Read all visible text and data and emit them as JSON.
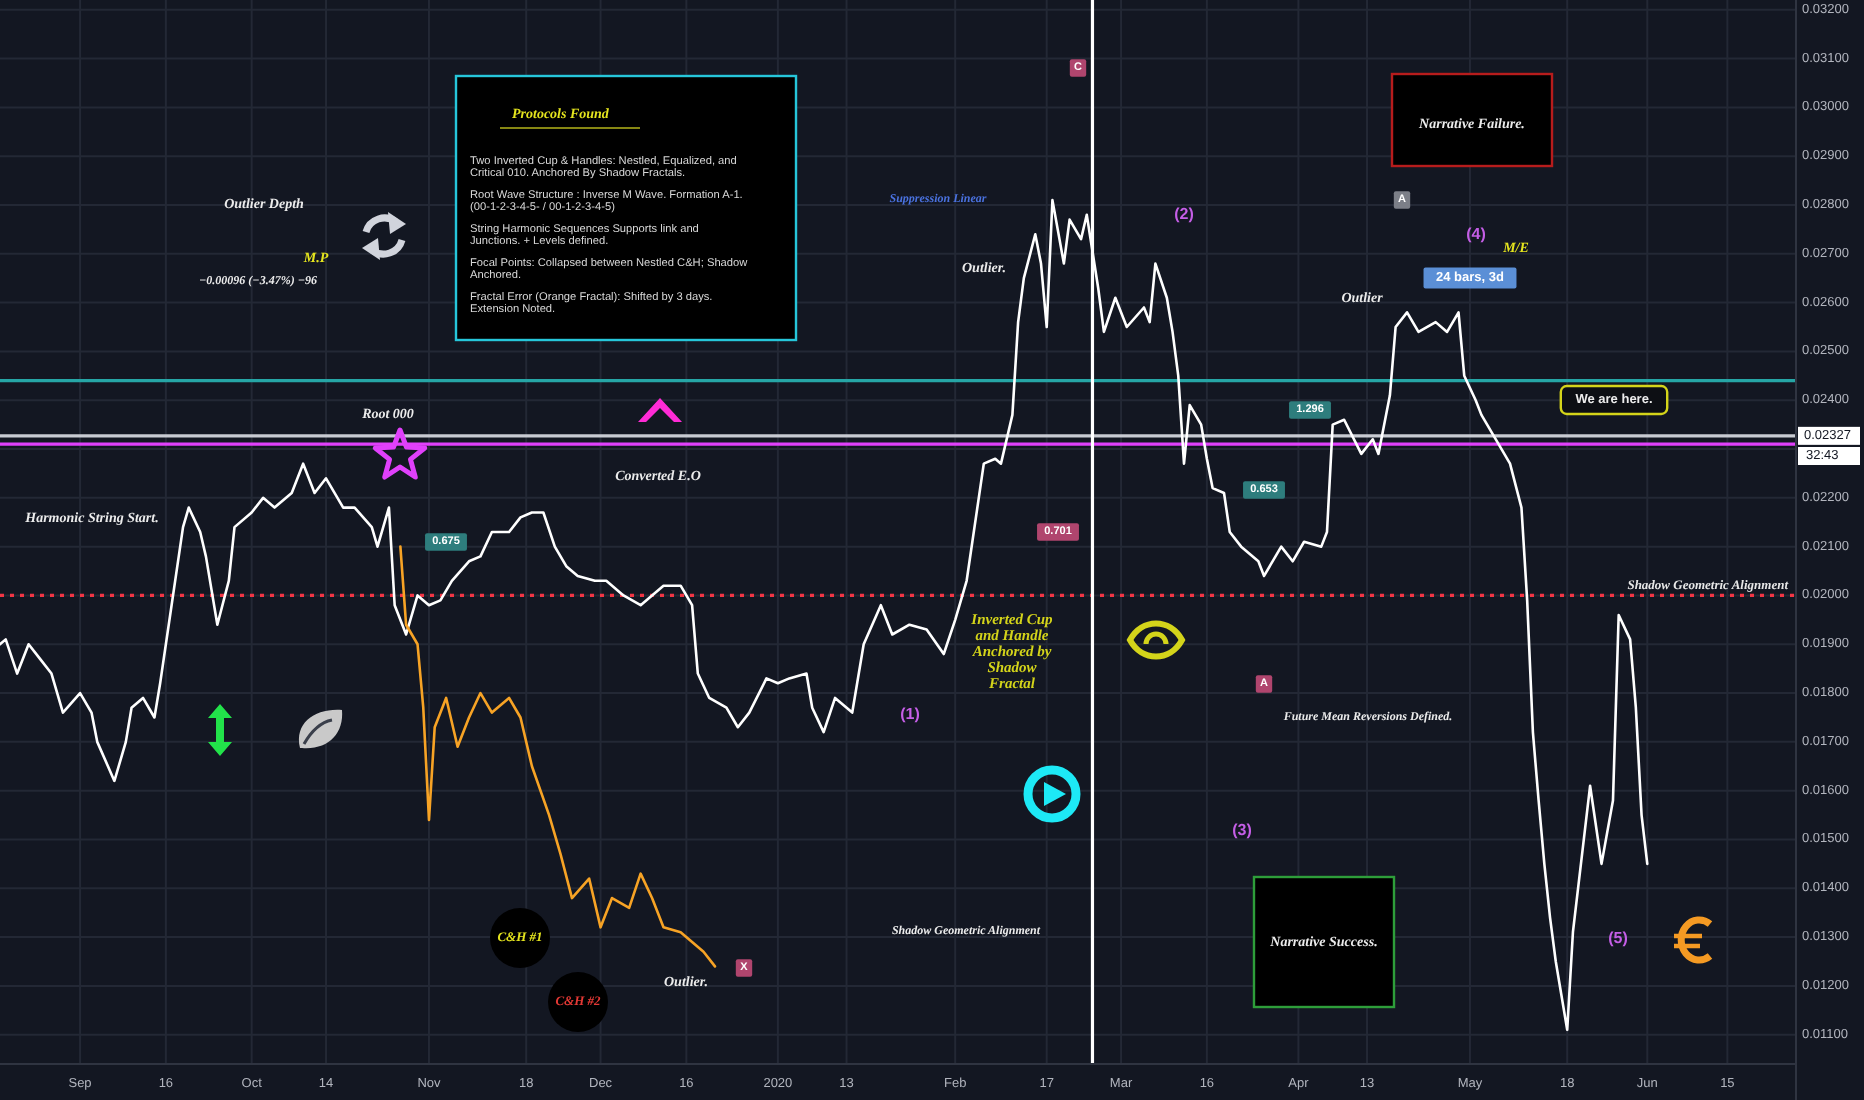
{
  "chart_data": {
    "type": "line",
    "xlim": [
      "2019-08-18",
      "2020-06-27"
    ],
    "xticks": [
      {
        "value": "2019-09-01",
        "label": "Sep"
      },
      {
        "value": "2019-09-16",
        "label": "16"
      },
      {
        "value": "2019-10-01",
        "label": "Oct"
      },
      {
        "value": "2019-10-14",
        "label": "14"
      },
      {
        "value": "2019-11-01",
        "label": "Nov"
      },
      {
        "value": "2019-11-18",
        "label": "18"
      },
      {
        "value": "2019-12-01",
        "label": "Dec"
      },
      {
        "value": "2019-12-16",
        "label": "16"
      },
      {
        "value": "2020-01-01",
        "label": "2020"
      },
      {
        "value": "2020-01-13",
        "label": "13"
      },
      {
        "value": "2020-02-01",
        "label": "Feb"
      },
      {
        "value": "2020-02-17",
        "label": "17"
      },
      {
        "value": "2020-03-01",
        "label": "Mar"
      },
      {
        "value": "2020-03-16",
        "label": "16"
      },
      {
        "value": "2020-04-01",
        "label": "Apr"
      },
      {
        "value": "2020-04-13",
        "label": "13"
      },
      {
        "value": "2020-05-01",
        "label": "May"
      },
      {
        "value": "2020-05-18",
        "label": "18"
      },
      {
        "value": "2020-06-01",
        "label": "Jun"
      },
      {
        "value": "2020-06-15",
        "label": "15"
      }
    ],
    "ylim": [
      0.0104,
      0.0322
    ],
    "yticks": [
      {
        "value": 0.011,
        "label": "0.01100"
      },
      {
        "value": 0.012,
        "label": "0.01200"
      },
      {
        "value": 0.013,
        "label": "0.01300"
      },
      {
        "value": 0.014,
        "label": "0.01400"
      },
      {
        "value": 0.015,
        "label": "0.01500"
      },
      {
        "value": 0.016,
        "label": "0.01600"
      },
      {
        "value": 0.017,
        "label": "0.01700"
      },
      {
        "value": 0.018,
        "label": "0.01800"
      },
      {
        "value": 0.019,
        "label": "0.01900"
      },
      {
        "value": 0.02,
        "label": "0.02000"
      },
      {
        "value": 0.021,
        "label": "0.02100"
      },
      {
        "value": 0.022,
        "label": "0.02200"
      },
      {
        "value": 0.023,
        "label": null
      },
      {
        "value": 0.024,
        "label": "0.02400"
      },
      {
        "value": 0.025,
        "label": "0.02500"
      },
      {
        "value": 0.026,
        "label": "0.02600"
      },
      {
        "value": 0.027,
        "label": "0.02700"
      },
      {
        "value": 0.028,
        "label": "0.02800"
      },
      {
        "value": 0.029,
        "label": "0.02900"
      },
      {
        "value": 0.03,
        "label": "0.03000"
      },
      {
        "value": 0.031,
        "label": "0.03100"
      },
      {
        "value": 0.032,
        "label": "0.03200"
      }
    ],
    "grid": true,
    "series": [
      {
        "color": "#ffffff",
        "x": [
          "2019-08-18",
          "2019-08-19",
          "2019-08-21",
          "2019-08-23",
          "2019-08-25",
          "2019-08-27",
          "2019-08-29",
          "2019-09-01",
          "2019-09-03",
          "2019-09-04",
          "2019-09-07",
          "2019-09-09",
          "2019-09-10",
          "2019-09-12",
          "2019-09-14",
          "2019-09-15",
          "2019-09-17",
          "2019-09-19",
          "2019-09-20",
          "2019-09-22",
          "2019-09-23",
          "2019-09-25",
          "2019-09-27",
          "2019-09-28",
          "2019-10-01",
          "2019-10-03",
          "2019-10-05",
          "2019-10-08",
          "2019-10-10",
          "2019-10-12",
          "2019-10-14",
          "2019-10-17",
          "2019-10-19",
          "2019-10-22",
          "2019-10-23",
          "2019-10-25",
          "2019-10-26",
          "2019-10-28",
          "2019-10-30",
          "2019-11-01",
          "2019-11-03",
          "2019-11-05",
          "2019-11-08",
          "2019-11-10",
          "2019-11-12",
          "2019-11-15",
          "2019-11-17",
          "2019-11-19",
          "2019-11-21",
          "2019-11-23",
          "2019-11-25",
          "2019-11-27",
          "2019-11-30",
          "2019-12-02",
          "2019-12-05",
          "2019-12-08",
          "2019-12-10",
          "2019-12-12",
          "2019-12-15",
          "2019-12-17",
          "2019-12-18",
          "2019-12-20",
          "2019-12-23",
          "2019-12-25",
          "2019-12-27",
          "2019-12-30",
          "2020-01-01",
          "2020-01-03",
          "2020-01-06",
          "2020-01-07",
          "2020-01-09",
          "2020-01-11",
          "2020-01-14",
          "2020-01-16",
          "2020-01-19",
          "2020-01-21",
          "2020-01-24",
          "2020-01-27",
          "2020-01-30",
          "2020-02-01",
          "2020-02-03",
          "2020-02-04",
          "2020-02-06",
          "2020-02-08",
          "2020-02-09",
          "2020-02-11",
          "2020-02-12",
          "2020-02-13",
          "2020-02-15",
          "2020-02-16",
          "2020-02-17",
          "2020-02-18",
          "2020-02-20",
          "2020-02-21",
          "2020-02-23",
          "2020-02-24",
          "2020-02-26",
          "2020-02-27",
          "2020-02-29",
          "2020-03-02",
          "2020-03-05",
          "2020-03-06",
          "2020-03-07",
          "2020-03-09",
          "2020-03-10",
          "2020-03-11",
          "2020-03-12",
          "2020-03-13",
          "2020-03-15",
          "2020-03-16",
          "2020-03-17",
          "2020-03-19",
          "2020-03-20",
          "2020-03-22",
          "2020-03-25",
          "2020-03-26",
          "2020-03-29",
          "2020-03-31",
          "2020-04-02",
          "2020-04-05",
          "2020-04-06",
          "2020-04-07",
          "2020-04-09",
          "2020-04-12",
          "2020-04-14",
          "2020-04-15",
          "2020-04-17",
          "2020-04-18",
          "2020-04-20",
          "2020-04-22",
          "2020-04-25",
          "2020-04-27",
          "2020-04-29",
          "2020-04-30",
          "2020-05-02",
          "2020-05-03",
          "2020-05-05",
          "2020-05-07",
          "2020-05-08",
          "2020-05-10",
          "2020-05-11",
          "2020-05-12",
          "2020-05-13",
          "2020-05-14",
          "2020-05-15",
          "2020-05-16",
          "2020-05-18",
          "2020-05-19",
          "2020-05-21",
          "2020-05-22",
          "2020-05-24",
          "2020-05-26",
          "2020-05-27",
          "2020-05-29",
          "2020-05-30",
          "2020-05-31",
          "2020-06-01"
        ],
        "values": [
          0.019,
          0.0191,
          0.0184,
          0.019,
          0.0187,
          0.0184,
          0.0176,
          0.018,
          0.0176,
          0.017,
          0.0162,
          0.017,
          0.0177,
          0.0179,
          0.0175,
          0.0182,
          0.0198,
          0.0214,
          0.0218,
          0.0213,
          0.0208,
          0.0194,
          0.0203,
          0.0214,
          0.0217,
          0.022,
          0.0218,
          0.0221,
          0.0227,
          0.0221,
          0.0224,
          0.0218,
          0.0218,
          0.0214,
          0.021,
          0.0218,
          0.0198,
          0.0192,
          0.02,
          0.0198,
          0.0199,
          0.0203,
          0.0207,
          0.0208,
          0.0213,
          0.0213,
          0.0216,
          0.0217,
          0.0217,
          0.021,
          0.0206,
          0.0204,
          0.0203,
          0.0203,
          0.02,
          0.0198,
          0.02,
          0.0202,
          0.0202,
          0.0198,
          0.0184,
          0.0179,
          0.0177,
          0.0173,
          0.0176,
          0.0183,
          0.0182,
          0.0183,
          0.0184,
          0.0177,
          0.0172,
          0.0179,
          0.0176,
          0.019,
          0.0198,
          0.0192,
          0.0194,
          0.0193,
          0.0188,
          0.0195,
          0.0203,
          0.0211,
          0.0227,
          0.0228,
          0.0227,
          0.0237,
          0.0256,
          0.0265,
          0.0274,
          0.0268,
          0.0255,
          0.0281,
          0.0268,
          0.0277,
          0.0273,
          0.0278,
          0.0263,
          0.0254,
          0.0261,
          0.0255,
          0.0259,
          0.0256,
          0.0268,
          0.0261,
          0.0254,
          0.0245,
          0.0227,
          0.0239,
          0.0235,
          0.0228,
          0.0222,
          0.0221,
          0.0213,
          0.021,
          0.0207,
          0.0204,
          0.021,
          0.0207,
          0.0211,
          0.021,
          0.0213,
          0.0235,
          0.0236,
          0.0229,
          0.0232,
          0.0229,
          0.0241,
          0.0255,
          0.0258,
          0.0254,
          0.0256,
          0.0254,
          0.0258,
          0.0245,
          0.024,
          0.0237,
          0.0233,
          0.0229,
          0.0227,
          0.0218,
          0.0199,
          0.0172,
          0.0158,
          0.0145,
          0.0134,
          0.0125,
          0.0111,
          0.0131,
          0.0151,
          0.0161,
          0.0145,
          0.0158,
          0.0196,
          0.0191,
          0.0177,
          0.0155,
          0.0145
        ]
      },
      {
        "color": "#f7a325",
        "x": [
          "2019-10-27",
          "2019-10-28",
          "2019-10-30",
          "2019-10-31",
          "2019-11-01",
          "2019-11-02",
          "2019-11-04",
          "2019-11-06",
          "2019-11-08",
          "2019-11-10",
          "2019-11-12",
          "2019-11-15",
          "2019-11-17",
          "2019-11-19",
          "2019-11-22",
          "2019-11-24",
          "2019-11-26",
          "2019-11-29",
          "2019-12-01",
          "2019-12-03",
          "2019-12-06",
          "2019-12-08",
          "2019-12-10",
          "2019-12-12",
          "2019-12-15",
          "2019-12-17",
          "2019-12-19",
          "2019-12-21"
        ],
        "values": [
          0.021,
          0.0194,
          0.019,
          0.0177,
          0.0154,
          0.0173,
          0.0179,
          0.0169,
          0.0175,
          0.018,
          0.0176,
          0.0179,
          0.0175,
          0.0165,
          0.0155,
          0.0147,
          0.0138,
          0.0142,
          0.0132,
          0.0138,
          0.0136,
          0.0143,
          0.0138,
          0.0132,
          0.0131,
          0.0129,
          0.0127,
          0.0124
        ]
      }
    ],
    "ref_lines": [
      {
        "axis": "y",
        "value": 0.02327,
        "label": "0.02327",
        "color": "#c8cbd2"
      },
      {
        "axis": "y",
        "value": 0.0231,
        "color": "#e040fb"
      },
      {
        "axis": "y",
        "value": 0.0244,
        "color": "#26a6a6"
      },
      {
        "axis": "y",
        "value": 0.02,
        "label": "Shadow Geometric Alignment",
        "color": "#f23645",
        "line_style": "dotted"
      },
      {
        "axis": "x",
        "value": "2020-02-25",
        "color": "#ffffff"
      }
    ],
    "annotations": [
      "Protocols Found",
      "Two Inverted Cup & Handles: Nestled, Equalized, and Critical 010. Anchored By Shadow Fractals.",
      "Root Wave Structure : Inverse M Wave. Formation A-1. (00-1-2-3-4-5- / 00-1-2-3-4-5)",
      "String Harmonic Sequences Supports link and Junctions. + Levels defined.",
      "Focal Points: Collapsed between Nestled C&H; Shadow Anchored.",
      "Fractal Error (Orange Fractal): Shifted by 3 days. Extension Noted.",
      "Outlier Depth",
      "−0.00096 (−3.47%) −96",
      "M.P",
      "Root 000",
      "Harmonic String Start.",
      "Converted E.O",
      "Suppression Linear",
      "Outlier.",
      "Outlier",
      "Outlier.",
      "Narrative Failure.",
      "Narrative Success.",
      "M/E",
      "24 bars, 3d",
      "We are here.",
      "Shadow Geometric Alignment",
      "Future Mean Reversions Defined.",
      "Inverted Cup and Handle Anchored by Shadow Fractal",
      "C&H #1",
      "C&H #2",
      "(1)",
      "(2)",
      "(3)",
      "(4)",
      "(5)",
      "C",
      "A",
      "A",
      "X",
      "0.675",
      "0.701",
      "1.296",
      "0.653",
      "32:43"
    ]
  }
}
